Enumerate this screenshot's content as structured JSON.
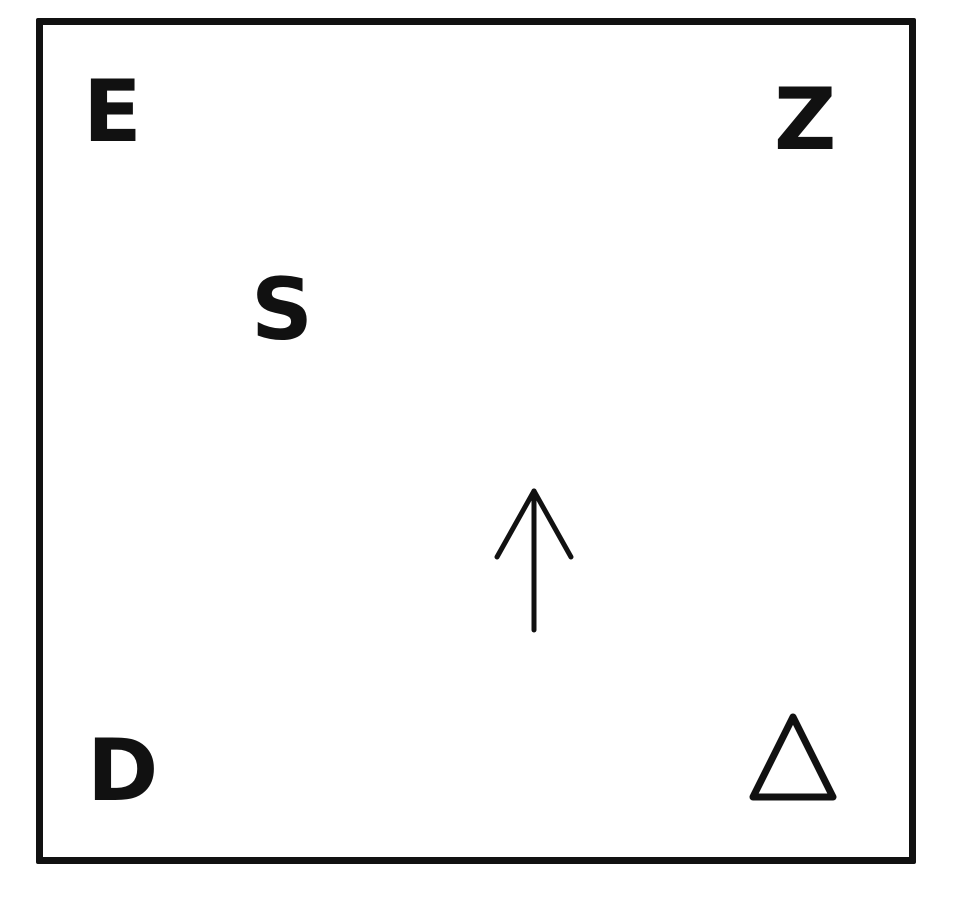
{
  "symbols": {
    "top_left": "E",
    "top_right": "Z",
    "upper_middle_left": "S",
    "bottom_left": "D"
  },
  "icons": {
    "center": "arrow-up-icon",
    "bottom_right": "triangle-icon"
  },
  "colors": {
    "stroke": "#111111",
    "background": "#ffffff"
  }
}
